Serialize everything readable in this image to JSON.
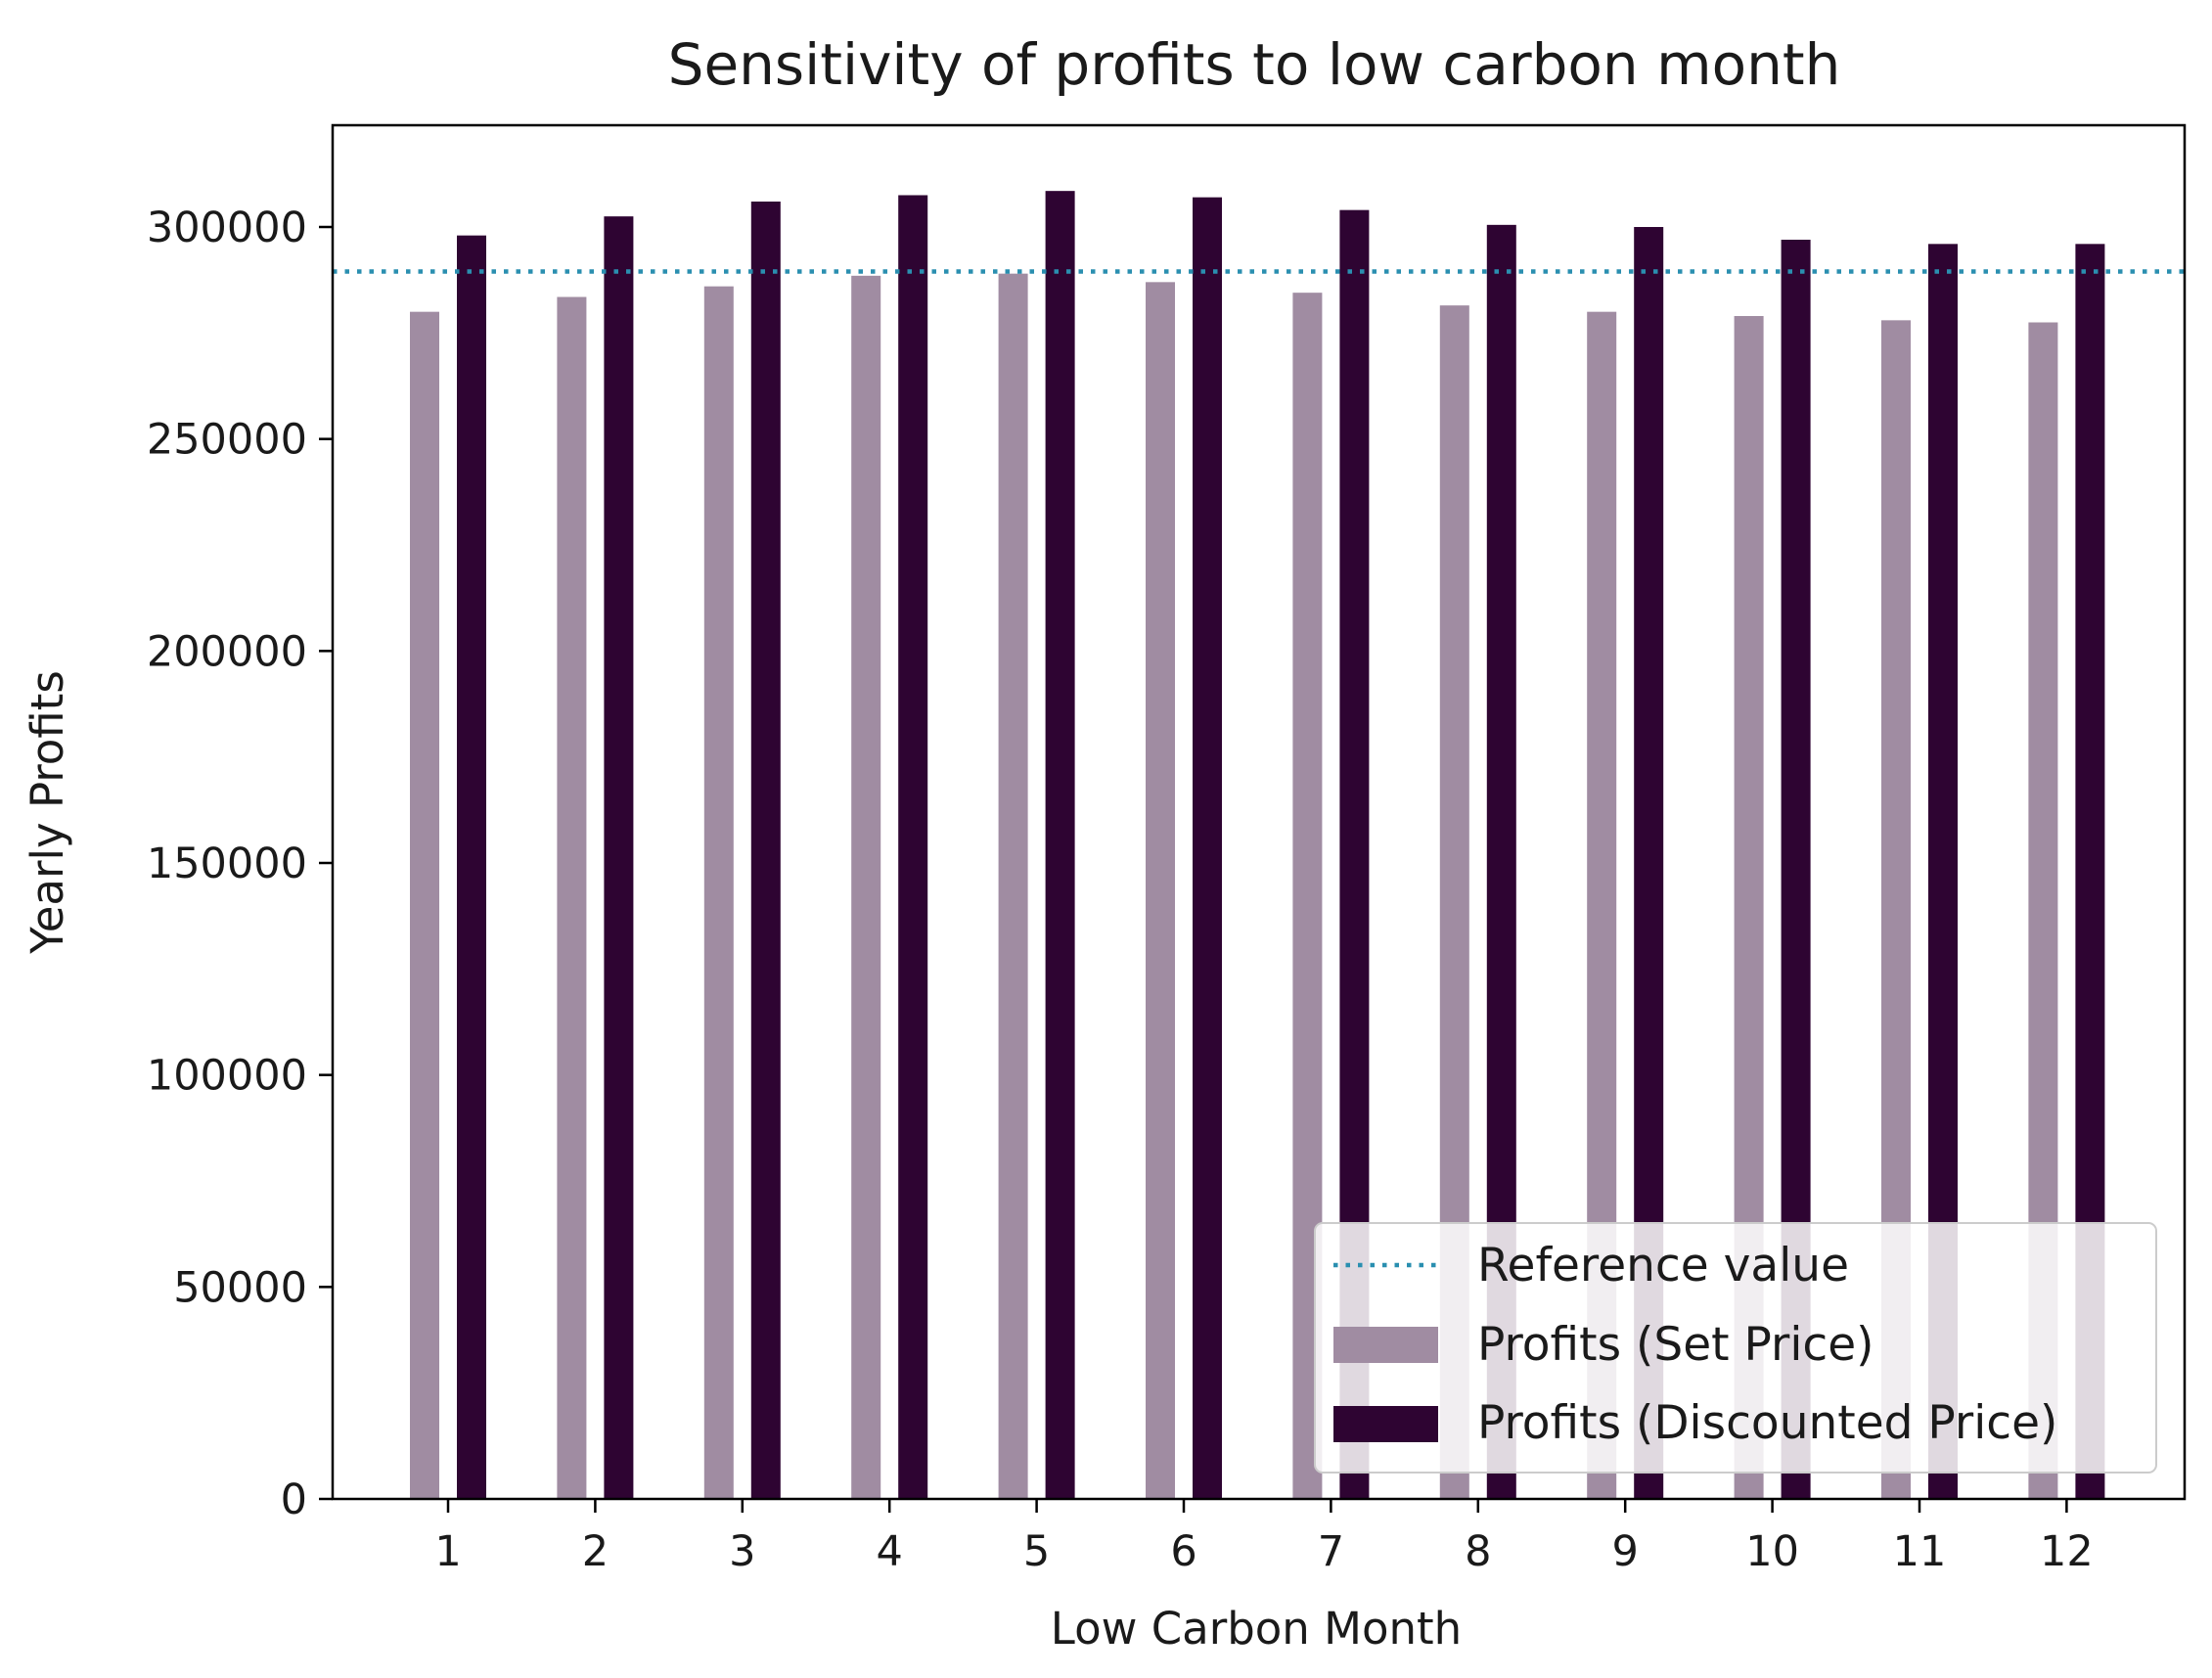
{
  "chart_data": {
    "type": "bar",
    "title": "Sensitivity of profits to low carbon month",
    "xlabel": "Low Carbon Month",
    "ylabel": "Yearly Profits",
    "categories": [
      "1",
      "2",
      "3",
      "4",
      "5",
      "6",
      "7",
      "8",
      "9",
      "10",
      "11",
      "12"
    ],
    "series": [
      {
        "name": "Profits (Set Price)",
        "color": "#a08ca2",
        "values": [
          280000,
          283500,
          286000,
          288500,
          289000,
          287000,
          284500,
          281500,
          280000,
          279000,
          278000,
          277500
        ]
      },
      {
        "name": "Profits (Discounted Price)",
        "color": "#2e0432",
        "values": [
          298000,
          302500,
          306000,
          307500,
          308500,
          307000,
          304000,
          300500,
          300000,
          297000,
          296000,
          296000
        ]
      }
    ],
    "reference_line": {
      "name": "Reference value",
      "value": 289500,
      "color": "#2a8fb0",
      "style": "dotted"
    },
    "ylim": [
      0,
      324000
    ],
    "yticks": [
      0,
      50000,
      100000,
      150000,
      200000,
      250000,
      300000
    ],
    "legend_position": "lower-right",
    "grid": false
  }
}
